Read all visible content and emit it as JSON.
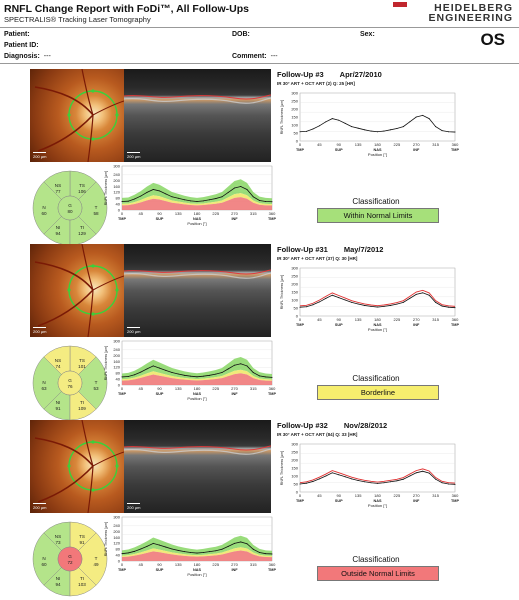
{
  "report": {
    "title": "RNFL Change Report with FoDi™, All Follow-Ups",
    "subtitle": "SPECTRALIS® Tracking Laser Tomography",
    "logo_line1": "HEIDELBERG",
    "logo_line2": "ENGINEERING",
    "eye": "OS",
    "brand_color": "#c0262d"
  },
  "patient": {
    "patient_label": "Patient:",
    "patient_value": "",
    "dob_label": "DOB:",
    "dob_value": "",
    "sex_label": "Sex:",
    "sex_value": "",
    "patient_id_label": "Patient ID:",
    "patient_id_value": "",
    "diagnosis_label": "Diagnosis:",
    "diagnosis_value": "---",
    "comment_label": "Comment:",
    "comment_value": "---"
  },
  "chart_axes": {
    "x_ticks": [
      "0",
      "45",
      "90",
      "135",
      "180",
      "225",
      "270",
      "315",
      "360"
    ],
    "x_region_labels": [
      "TMP",
      "SUP",
      "NAS",
      "INF",
      "TMP"
    ],
    "x_label": "Position [°]",
    "y_ticks": [
      "0",
      "40",
      "80",
      "120",
      "160",
      "200",
      "240",
      "280",
      "300"
    ],
    "y_label": "RNFL Thickness [µm]",
    "scale_bar": "200 µm"
  },
  "followups": [
    {
      "title": "Follow-Up #3",
      "date": "Apr/27/2010",
      "scan_info": "IR 30° ART + OCT ART (2) Q: 25 [HR]",
      "classification_label": "Classification",
      "classification": "Within Normal Limits",
      "classification_color": "#a6e07a",
      "sectors": {
        "NS": "77",
        "TS": "106",
        "N": "60",
        "G": "80",
        "T": "58",
        "NI": "94",
        "TI": "129"
      },
      "sector_colors": {
        "NS": "#b4e48a",
        "TS": "#b4e48a",
        "N": "#b4e48a",
        "G": "#b4e48a",
        "T": "#b4e48a",
        "NI": "#b4e48a",
        "TI": "#b4e48a"
      },
      "chart_data": {
        "type": "line",
        "x": [
          0,
          15,
          30,
          45,
          60,
          75,
          90,
          105,
          120,
          135,
          150,
          165,
          180,
          195,
          210,
          225,
          240,
          255,
          270,
          285,
          300,
          315,
          330,
          345,
          360
        ],
        "series": [
          {
            "values": [
              58,
              60,
              75,
              95,
              120,
              140,
              130,
              110,
              90,
              80,
              70,
              62,
              58,
              62,
              70,
              78,
              90,
              120,
              150,
              160,
              140,
              90,
              65,
              58,
              56
            ]
          }
        ],
        "xlim": [
          0,
          360
        ],
        "ylim": [
          0,
          300
        ]
      }
    },
    {
      "title": "Follow-Up #31",
      "date": "May/7/2012",
      "scan_info": "IR 30° ART + OCT ART (37) Q: 30 [HR]",
      "classification_label": "Classification",
      "classification": "Borderline",
      "classification_color": "#f6ee6e",
      "sectors": {
        "NS": "74",
        "TS": "101",
        "N": "63",
        "G": "76",
        "T": "53",
        "NI": "91",
        "TI": "109"
      },
      "sector_colors": {
        "NS": "#f4ec82",
        "TS": "#f4ec82",
        "N": "#b4e48a",
        "G": "#f4ec82",
        "T": "#b4e48a",
        "NI": "#b4e48a",
        "TI": "#f4ec82"
      },
      "chart_data": {
        "type": "line",
        "x": [
          0,
          15,
          30,
          45,
          60,
          75,
          90,
          105,
          120,
          135,
          150,
          165,
          180,
          195,
          210,
          225,
          240,
          255,
          270,
          285,
          300,
          315,
          330,
          345,
          360
        ],
        "series": [
          {
            "values": [
              55,
              58,
              70,
              88,
              110,
              130,
              115,
              100,
              85,
              75,
              66,
              60,
              56,
              60,
              66,
              74,
              85,
              110,
              135,
              145,
              130,
              85,
              62,
              55,
              52
            ]
          }
        ],
        "xlim": [
          0,
          360
        ],
        "ylim": [
          0,
          300
        ]
      }
    },
    {
      "title": "Follow-Up #32",
      "date": "Nov/28/2012",
      "scan_info": "IR 30° ART + OCT ART (84) Q: 33 [HR]",
      "classification_label": "Classification",
      "classification": "Outside Normal Limits",
      "classification_color": "#f2787a",
      "sectors": {
        "NS": "73",
        "TS": "91",
        "N": "60",
        "G": "72",
        "T": "49",
        "NI": "94",
        "TI": "103"
      },
      "sector_colors": {
        "NS": "#b4e48a",
        "TS": "#f4ec82",
        "N": "#b4e48a",
        "G": "#f2787a",
        "T": "#f4ec82",
        "NI": "#b4e48a",
        "TI": "#f4ec82"
      },
      "chart_data": {
        "type": "line",
        "x": [
          0,
          15,
          30,
          45,
          60,
          75,
          90,
          105,
          120,
          135,
          150,
          165,
          180,
          195,
          210,
          225,
          240,
          255,
          270,
          285,
          300,
          315,
          330,
          345,
          360
        ],
        "series": [
          {
            "values": [
              50,
              55,
              66,
              82,
              100,
              120,
              108,
              95,
              82,
              72,
              64,
              58,
              54,
              58,
              64,
              70,
              80,
              100,
              120,
              130,
              118,
              80,
              58,
              50,
              48
            ]
          }
        ],
        "xlim": [
          0,
          360
        ],
        "ylim": [
          0,
          300
        ]
      }
    }
  ]
}
